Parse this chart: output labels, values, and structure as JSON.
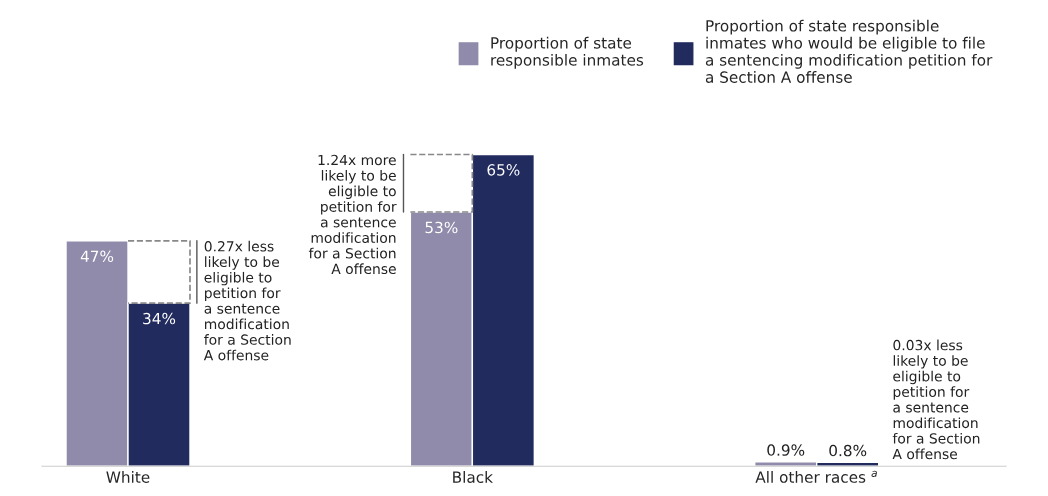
{
  "chart_data": {
    "type": "bar",
    "categories": [
      "White",
      "Black",
      "All other races $^{a}$"
    ],
    "series": [
      {
        "name": "Proportion of state\nresponsible inmates",
        "color": "#918bab",
        "values": [
          47,
          53,
          0.9
        ],
        "value_labels": [
          "47%",
          "53%",
          "0.9%"
        ]
      },
      {
        "name": "Proportion of state responsible\ninmates who would be eligible to file\na sentencing modification petition for\na Section A offense",
        "color": "#212b5e",
        "values": [
          34,
          65,
          0.8
        ],
        "value_labels": [
          "34%",
          "65%",
          "0.8%"
        ]
      }
    ],
    "annotations": [
      "0.27x less\nlikely to be\neligible to\npetition for\na sentence\nmodification\nfor a Section\nA offense",
      "1.24x more\nlikely to be\neligible to\npetition for\na sentence\nmodification\nfor a Section\nA offense",
      "0.03x less\nlikely to be\neligible to\npetition for\na sentence\nmodification\nfor a Section\nA offense"
    ],
    "legend": "top right",
    "grid": false
  }
}
